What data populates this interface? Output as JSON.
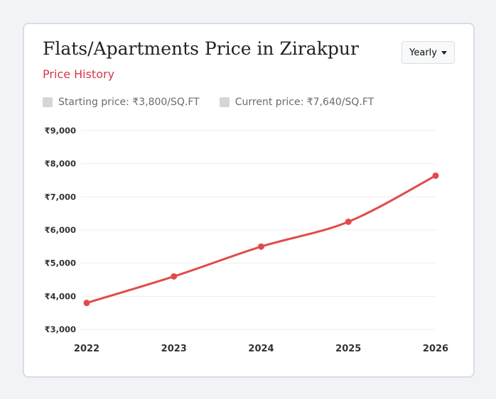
{
  "header": {
    "title": "Flats/Apartments Price in Zirakpur",
    "subtitle": "Price History",
    "period_select": "Yearly",
    "dropdown_icon": "caret-down-icon"
  },
  "legend": [
    {
      "label": "Starting price: ₹3,800/SQ.FT"
    },
    {
      "label": "Current price: ₹7,640/SQ.FT"
    }
  ],
  "colors": {
    "line": "#e24a4a",
    "subtitle": "#d9364a",
    "swatch": "#d6d6d6"
  },
  "chart_data": {
    "type": "line",
    "x": [
      "2022",
      "2023",
      "2024",
      "2025",
      "2026"
    ],
    "series": [
      {
        "values": [
          3800,
          4600,
          5500,
          6250,
          7640
        ]
      }
    ],
    "ylim": [
      3000,
      9000
    ],
    "yticks": [
      3000,
      4000,
      5000,
      6000,
      7000,
      8000,
      9000
    ],
    "ytick_labels": [
      "₹3,000",
      "₹4,000",
      "₹5,000",
      "₹6,000",
      "₹7,000",
      "₹8,000",
      "₹9,000"
    ],
    "grid": true,
    "xlabel": "",
    "ylabel": ""
  }
}
